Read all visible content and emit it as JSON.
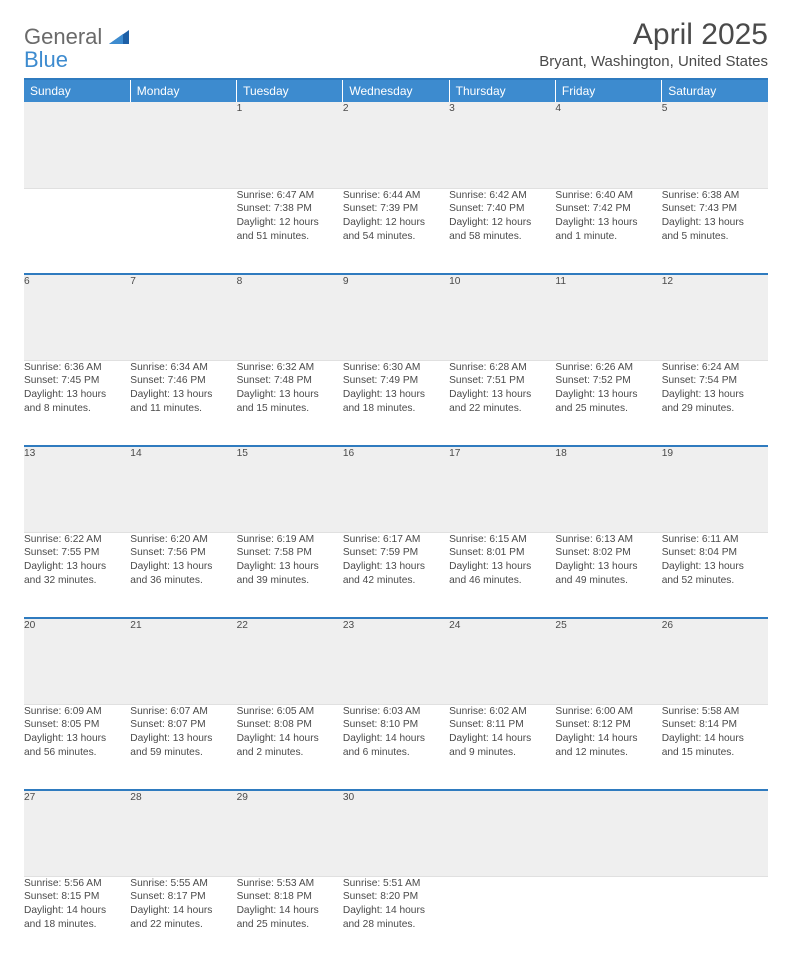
{
  "brand": {
    "part1": "General",
    "part2": "Blue"
  },
  "title": "April 2025",
  "location": "Bryant, Washington, United States",
  "colors": {
    "header_bg": "#3d8bcf",
    "header_text": "#ffffff",
    "border": "#2f7bbf",
    "daynum_bg": "#efefef",
    "text": "#4a4a4a",
    "logo_gray": "#6a6a6a",
    "logo_blue": "#3d8bcf",
    "page_bg": "#ffffff"
  },
  "calendar": {
    "type": "table",
    "columns": [
      "Sunday",
      "Monday",
      "Tuesday",
      "Wednesday",
      "Thursday",
      "Friday",
      "Saturday"
    ],
    "fontsize_header": 12,
    "fontsize_daynum": 11,
    "fontsize_body": 10.2,
    "column_count": 7,
    "weeks": [
      [
        null,
        null,
        {
          "n": "1",
          "sunrise": "Sunrise: 6:47 AM",
          "sunset": "Sunset: 7:38 PM",
          "day1": "Daylight: 12 hours",
          "day2": "and 51 minutes."
        },
        {
          "n": "2",
          "sunrise": "Sunrise: 6:44 AM",
          "sunset": "Sunset: 7:39 PM",
          "day1": "Daylight: 12 hours",
          "day2": "and 54 minutes."
        },
        {
          "n": "3",
          "sunrise": "Sunrise: 6:42 AM",
          "sunset": "Sunset: 7:40 PM",
          "day1": "Daylight: 12 hours",
          "day2": "and 58 minutes."
        },
        {
          "n": "4",
          "sunrise": "Sunrise: 6:40 AM",
          "sunset": "Sunset: 7:42 PM",
          "day1": "Daylight: 13 hours",
          "day2": "and 1 minute."
        },
        {
          "n": "5",
          "sunrise": "Sunrise: 6:38 AM",
          "sunset": "Sunset: 7:43 PM",
          "day1": "Daylight: 13 hours",
          "day2": "and 5 minutes."
        }
      ],
      [
        {
          "n": "6",
          "sunrise": "Sunrise: 6:36 AM",
          "sunset": "Sunset: 7:45 PM",
          "day1": "Daylight: 13 hours",
          "day2": "and 8 minutes."
        },
        {
          "n": "7",
          "sunrise": "Sunrise: 6:34 AM",
          "sunset": "Sunset: 7:46 PM",
          "day1": "Daylight: 13 hours",
          "day2": "and 11 minutes."
        },
        {
          "n": "8",
          "sunrise": "Sunrise: 6:32 AM",
          "sunset": "Sunset: 7:48 PM",
          "day1": "Daylight: 13 hours",
          "day2": "and 15 minutes."
        },
        {
          "n": "9",
          "sunrise": "Sunrise: 6:30 AM",
          "sunset": "Sunset: 7:49 PM",
          "day1": "Daylight: 13 hours",
          "day2": "and 18 minutes."
        },
        {
          "n": "10",
          "sunrise": "Sunrise: 6:28 AM",
          "sunset": "Sunset: 7:51 PM",
          "day1": "Daylight: 13 hours",
          "day2": "and 22 minutes."
        },
        {
          "n": "11",
          "sunrise": "Sunrise: 6:26 AM",
          "sunset": "Sunset: 7:52 PM",
          "day1": "Daylight: 13 hours",
          "day2": "and 25 minutes."
        },
        {
          "n": "12",
          "sunrise": "Sunrise: 6:24 AM",
          "sunset": "Sunset: 7:54 PM",
          "day1": "Daylight: 13 hours",
          "day2": "and 29 minutes."
        }
      ],
      [
        {
          "n": "13",
          "sunrise": "Sunrise: 6:22 AM",
          "sunset": "Sunset: 7:55 PM",
          "day1": "Daylight: 13 hours",
          "day2": "and 32 minutes."
        },
        {
          "n": "14",
          "sunrise": "Sunrise: 6:20 AM",
          "sunset": "Sunset: 7:56 PM",
          "day1": "Daylight: 13 hours",
          "day2": "and 36 minutes."
        },
        {
          "n": "15",
          "sunrise": "Sunrise: 6:19 AM",
          "sunset": "Sunset: 7:58 PM",
          "day1": "Daylight: 13 hours",
          "day2": "and 39 minutes."
        },
        {
          "n": "16",
          "sunrise": "Sunrise: 6:17 AM",
          "sunset": "Sunset: 7:59 PM",
          "day1": "Daylight: 13 hours",
          "day2": "and 42 minutes."
        },
        {
          "n": "17",
          "sunrise": "Sunrise: 6:15 AM",
          "sunset": "Sunset: 8:01 PM",
          "day1": "Daylight: 13 hours",
          "day2": "and 46 minutes."
        },
        {
          "n": "18",
          "sunrise": "Sunrise: 6:13 AM",
          "sunset": "Sunset: 8:02 PM",
          "day1": "Daylight: 13 hours",
          "day2": "and 49 minutes."
        },
        {
          "n": "19",
          "sunrise": "Sunrise: 6:11 AM",
          "sunset": "Sunset: 8:04 PM",
          "day1": "Daylight: 13 hours",
          "day2": "and 52 minutes."
        }
      ],
      [
        {
          "n": "20",
          "sunrise": "Sunrise: 6:09 AM",
          "sunset": "Sunset: 8:05 PM",
          "day1": "Daylight: 13 hours",
          "day2": "and 56 minutes."
        },
        {
          "n": "21",
          "sunrise": "Sunrise: 6:07 AM",
          "sunset": "Sunset: 8:07 PM",
          "day1": "Daylight: 13 hours",
          "day2": "and 59 minutes."
        },
        {
          "n": "22",
          "sunrise": "Sunrise: 6:05 AM",
          "sunset": "Sunset: 8:08 PM",
          "day1": "Daylight: 14 hours",
          "day2": "and 2 minutes."
        },
        {
          "n": "23",
          "sunrise": "Sunrise: 6:03 AM",
          "sunset": "Sunset: 8:10 PM",
          "day1": "Daylight: 14 hours",
          "day2": "and 6 minutes."
        },
        {
          "n": "24",
          "sunrise": "Sunrise: 6:02 AM",
          "sunset": "Sunset: 8:11 PM",
          "day1": "Daylight: 14 hours",
          "day2": "and 9 minutes."
        },
        {
          "n": "25",
          "sunrise": "Sunrise: 6:00 AM",
          "sunset": "Sunset: 8:12 PM",
          "day1": "Daylight: 14 hours",
          "day2": "and 12 minutes."
        },
        {
          "n": "26",
          "sunrise": "Sunrise: 5:58 AM",
          "sunset": "Sunset: 8:14 PM",
          "day1": "Daylight: 14 hours",
          "day2": "and 15 minutes."
        }
      ],
      [
        {
          "n": "27",
          "sunrise": "Sunrise: 5:56 AM",
          "sunset": "Sunset: 8:15 PM",
          "day1": "Daylight: 14 hours",
          "day2": "and 18 minutes."
        },
        {
          "n": "28",
          "sunrise": "Sunrise: 5:55 AM",
          "sunset": "Sunset: 8:17 PM",
          "day1": "Daylight: 14 hours",
          "day2": "and 22 minutes."
        },
        {
          "n": "29",
          "sunrise": "Sunrise: 5:53 AM",
          "sunset": "Sunset: 8:18 PM",
          "day1": "Daylight: 14 hours",
          "day2": "and 25 minutes."
        },
        {
          "n": "30",
          "sunrise": "Sunrise: 5:51 AM",
          "sunset": "Sunset: 8:20 PM",
          "day1": "Daylight: 14 hours",
          "day2": "and 28 minutes."
        },
        null,
        null,
        null
      ]
    ]
  }
}
